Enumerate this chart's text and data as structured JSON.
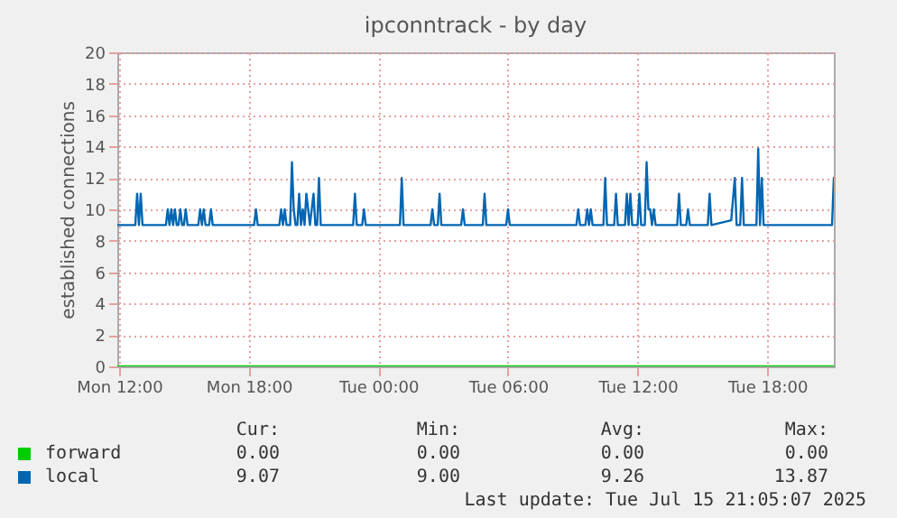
{
  "chart_data": {
    "type": "line",
    "title": "ipconntrack - by day",
    "ylabel": "established connections",
    "xlim": [
      "2025-07-14T11:55",
      "2025-07-15T21:05"
    ],
    "xticks": [
      {
        "value": "2025-07-14T12:00",
        "label": "Mon 12:00"
      },
      {
        "value": "2025-07-14T18:00",
        "label": "Mon 18:00"
      },
      {
        "value": "2025-07-15T00:00",
        "label": "Tue 00:00"
      },
      {
        "value": "2025-07-15T06:00",
        "label": "Tue 06:00"
      },
      {
        "value": "2025-07-15T12:00",
        "label": "Tue 12:00"
      },
      {
        "value": "2025-07-15T18:00",
        "label": "Tue 18:00"
      }
    ],
    "ylim": [
      0,
      20
    ],
    "yticks": [
      0,
      2,
      4,
      6,
      8,
      10,
      12,
      14,
      16,
      18,
      20
    ],
    "grid": true,
    "legend": "bottom",
    "marker": "none",
    "line_style": "solid",
    "series": [
      {
        "name": "forward",
        "color": "#00cc00",
        "x": [
          "2025-07-14T11:55",
          "2025-07-15T21:05"
        ],
        "values": [
          0,
          0
        ]
      },
      {
        "name": "local",
        "color": "#0066b3",
        "x": [
          "2025-07-14T11:55",
          "2025-07-14T12:45",
          "2025-07-14T12:50",
          "2025-07-14T12:55",
          "2025-07-14T13:00",
          "2025-07-14T13:05",
          "2025-07-14T14:10",
          "2025-07-14T14:15",
          "2025-07-14T14:20",
          "2025-07-14T14:25",
          "2025-07-14T14:30",
          "2025-07-14T14:35",
          "2025-07-14T14:40",
          "2025-07-14T14:45",
          "2025-07-14T14:50",
          "2025-07-14T14:55",
          "2025-07-14T15:00",
          "2025-07-14T15:05",
          "2025-07-14T15:10",
          "2025-07-14T15:40",
          "2025-07-14T15:45",
          "2025-07-14T15:50",
          "2025-07-14T15:55",
          "2025-07-14T16:00",
          "2025-07-14T16:10",
          "2025-07-14T16:15",
          "2025-07-14T16:20",
          "2025-07-14T18:15",
          "2025-07-14T18:20",
          "2025-07-14T18:25",
          "2025-07-14T19:25",
          "2025-07-14T19:30",
          "2025-07-14T19:35",
          "2025-07-14T19:40",
          "2025-07-14T19:45",
          "2025-07-14T19:55",
          "2025-07-14T20:00",
          "2025-07-14T20:05",
          "2025-07-14T20:10",
          "2025-07-14T20:15",
          "2025-07-14T20:20",
          "2025-07-14T20:25",
          "2025-07-14T20:30",
          "2025-07-14T20:35",
          "2025-07-14T20:40",
          "2025-07-14T20:45",
          "2025-07-14T20:50",
          "2025-07-14T21:00",
          "2025-07-14T21:05",
          "2025-07-14T21:10",
          "2025-07-14T21:15",
          "2025-07-14T21:20",
          "2025-07-14T22:50",
          "2025-07-14T22:55",
          "2025-07-14T23:00",
          "2025-07-14T23:15",
          "2025-07-14T23:20",
          "2025-07-14T23:25",
          "2025-07-15T01:00",
          "2025-07-15T01:05",
          "2025-07-15T01:10",
          "2025-07-15T02:25",
          "2025-07-15T02:30",
          "2025-07-15T02:35",
          "2025-07-15T02:45",
          "2025-07-15T02:50",
          "2025-07-15T02:55",
          "2025-07-15T03:50",
          "2025-07-15T03:55",
          "2025-07-15T04:00",
          "2025-07-15T04:50",
          "2025-07-15T04:55",
          "2025-07-15T05:00",
          "2025-07-15T05:55",
          "2025-07-15T06:00",
          "2025-07-15T06:05",
          "2025-07-15T09:10",
          "2025-07-15T09:15",
          "2025-07-15T09:20",
          "2025-07-15T09:35",
          "2025-07-15T09:40",
          "2025-07-15T09:45",
          "2025-07-15T09:50",
          "2025-07-15T09:55",
          "2025-07-15T10:25",
          "2025-07-15T10:30",
          "2025-07-15T10:35",
          "2025-07-15T10:55",
          "2025-07-15T11:00",
          "2025-07-15T11:05",
          "2025-07-15T11:25",
          "2025-07-15T11:30",
          "2025-07-15T11:35",
          "2025-07-15T11:40",
          "2025-07-15T11:45",
          "2025-07-15T12:00",
          "2025-07-15T12:05",
          "2025-07-15T12:10",
          "2025-07-15T12:20",
          "2025-07-15T12:25",
          "2025-07-15T12:30",
          "2025-07-15T12:35",
          "2025-07-15T12:40",
          "2025-07-15T12:45",
          "2025-07-15T12:50",
          "2025-07-15T13:50",
          "2025-07-15T13:55",
          "2025-07-15T14:00",
          "2025-07-15T14:15",
          "2025-07-15T14:20",
          "2025-07-15T14:25",
          "2025-07-15T15:15",
          "2025-07-15T15:20",
          "2025-07-15T15:25",
          "2025-07-15T16:20",
          "2025-07-15T16:30",
          "2025-07-15T16:35",
          "2025-07-15T16:45",
          "2025-07-15T16:50",
          "2025-07-15T16:55",
          "2025-07-15T17:30",
          "2025-07-15T17:35",
          "2025-07-15T17:40",
          "2025-07-15T17:45",
          "2025-07-15T17:50",
          "2025-07-15T21:00",
          "2025-07-15T21:05"
        ],
        "values": [
          9,
          9,
          11,
          9,
          11,
          9,
          9,
          10,
          9,
          10,
          9,
          10,
          9,
          9,
          10,
          9,
          9,
          10,
          9,
          9,
          10,
          9,
          10,
          9,
          9,
          10,
          9,
          9,
          10,
          9,
          9,
          10,
          9,
          10,
          9,
          9,
          13,
          10,
          9,
          9,
          11,
          9,
          10,
          9,
          11,
          10,
          9,
          11,
          9,
          9,
          12,
          9,
          9,
          11,
          9,
          9,
          10,
          9,
          9,
          12,
          9,
          9,
          10,
          9,
          9,
          11,
          9,
          9,
          10,
          9,
          9,
          11,
          9,
          9,
          10,
          9,
          9,
          10,
          9,
          9,
          10,
          9,
          10,
          9,
          9,
          12,
          9,
          9,
          11,
          9,
          9,
          11,
          9,
          11,
          9,
          9,
          11,
          9,
          9,
          13,
          10,
          10,
          9,
          10,
          9,
          9,
          11,
          9,
          9,
          10,
          9,
          9,
          11,
          9,
          9.3,
          12,
          9,
          9,
          12,
          9,
          9,
          13.87,
          9,
          12,
          9,
          9,
          12
        ]
      }
    ],
    "annotations": [
      "Cur:",
      "Min:",
      "Avg:",
      "Max:",
      "0.00",
      "0.00",
      "0.00",
      "0.00",
      "9.07",
      "9.00",
      "9.26",
      "13.87",
      "Last update: Tue Jul 15 21:05:07 2025"
    ]
  }
}
